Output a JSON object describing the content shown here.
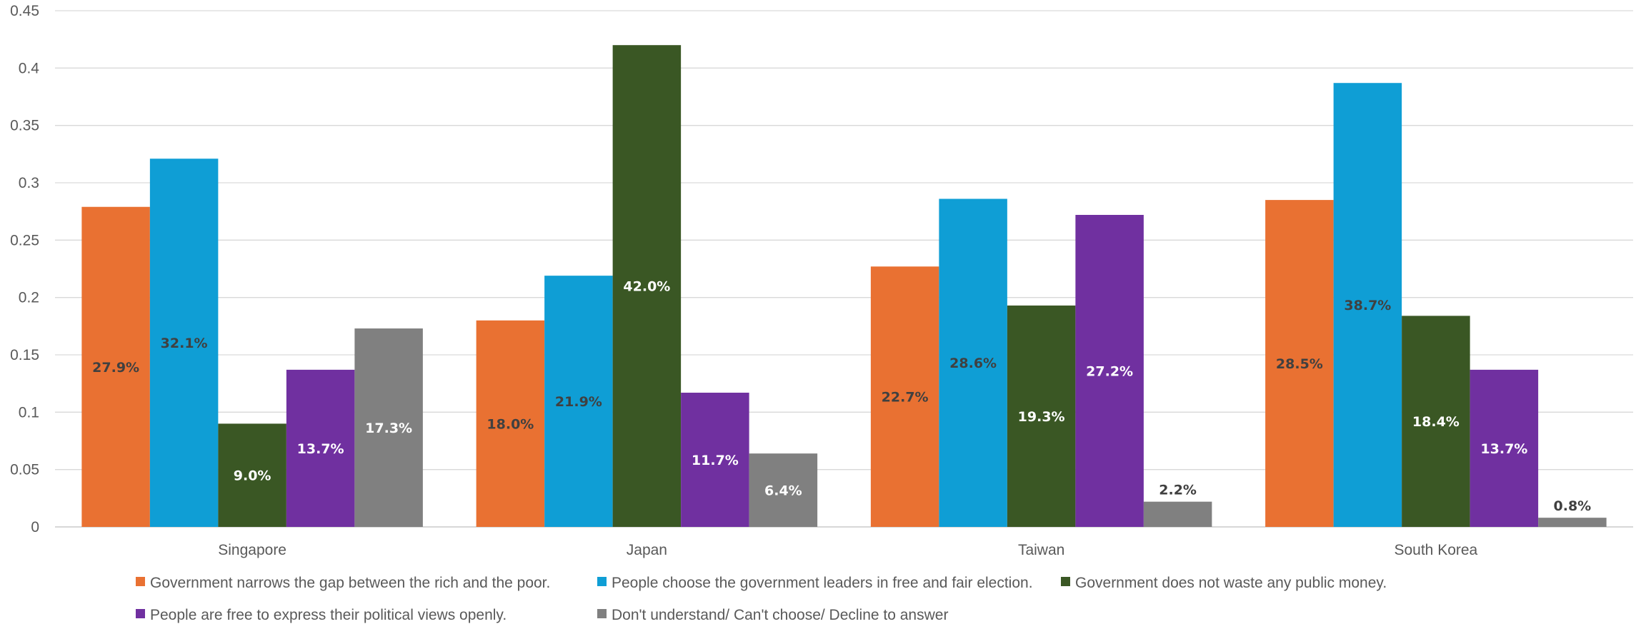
{
  "chart_data": {
    "type": "bar",
    "categories": [
      "Singapore",
      "Japan",
      "Taiwan",
      "South Korea"
    ],
    "ylim": [
      0,
      0.45
    ],
    "yticks": [
      "0",
      "0.05",
      "0.1",
      "0.15",
      "0.2",
      "0.25",
      "0.3",
      "0.35",
      "0.4",
      "0.45"
    ],
    "grid": true,
    "legend_position": "bottom",
    "series": [
      {
        "name": "Government narrows the gap between the rich and the poor.",
        "color": "#E97132",
        "label_color": "#404040",
        "values": [
          0.279,
          0.18,
          0.227,
          0.285
        ],
        "labels": [
          "27.9%",
          "18.0%",
          "22.7%",
          "28.5%"
        ]
      },
      {
        "name": "People choose the government leaders in free and fair election.",
        "color": "#0F9ED5",
        "label_color": "#404040",
        "values": [
          0.321,
          0.219,
          0.286,
          0.387
        ],
        "labels": [
          "32.1%",
          "21.9%",
          "28.6%",
          "38.7%"
        ]
      },
      {
        "name": "Government does not waste any public money.",
        "color": "#3A5724",
        "label_color": "#FFFFFF",
        "values": [
          0.09,
          0.42,
          0.193,
          0.184
        ],
        "labels": [
          "9.0%",
          "42.0%",
          "19.3%",
          "18.4%"
        ]
      },
      {
        "name": "People are free to express their political views openly.",
        "color": "#7030A0",
        "label_color": "#FFFFFF",
        "values": [
          0.137,
          0.117,
          0.272,
          0.137
        ],
        "labels": [
          "13.7%",
          "11.7%",
          "27.2%",
          "13.7%"
        ]
      },
      {
        "name": "Don't understand/ Can't choose/ Decline to answer",
        "color": "#808080",
        "label_color": "#FFFFFF",
        "label_color_outside": "#404040",
        "values": [
          0.173,
          0.064,
          0.022,
          0.008
        ],
        "labels": [
          "17.3%",
          "6.4%",
          "2.2%",
          "0.8%"
        ]
      }
    ]
  }
}
